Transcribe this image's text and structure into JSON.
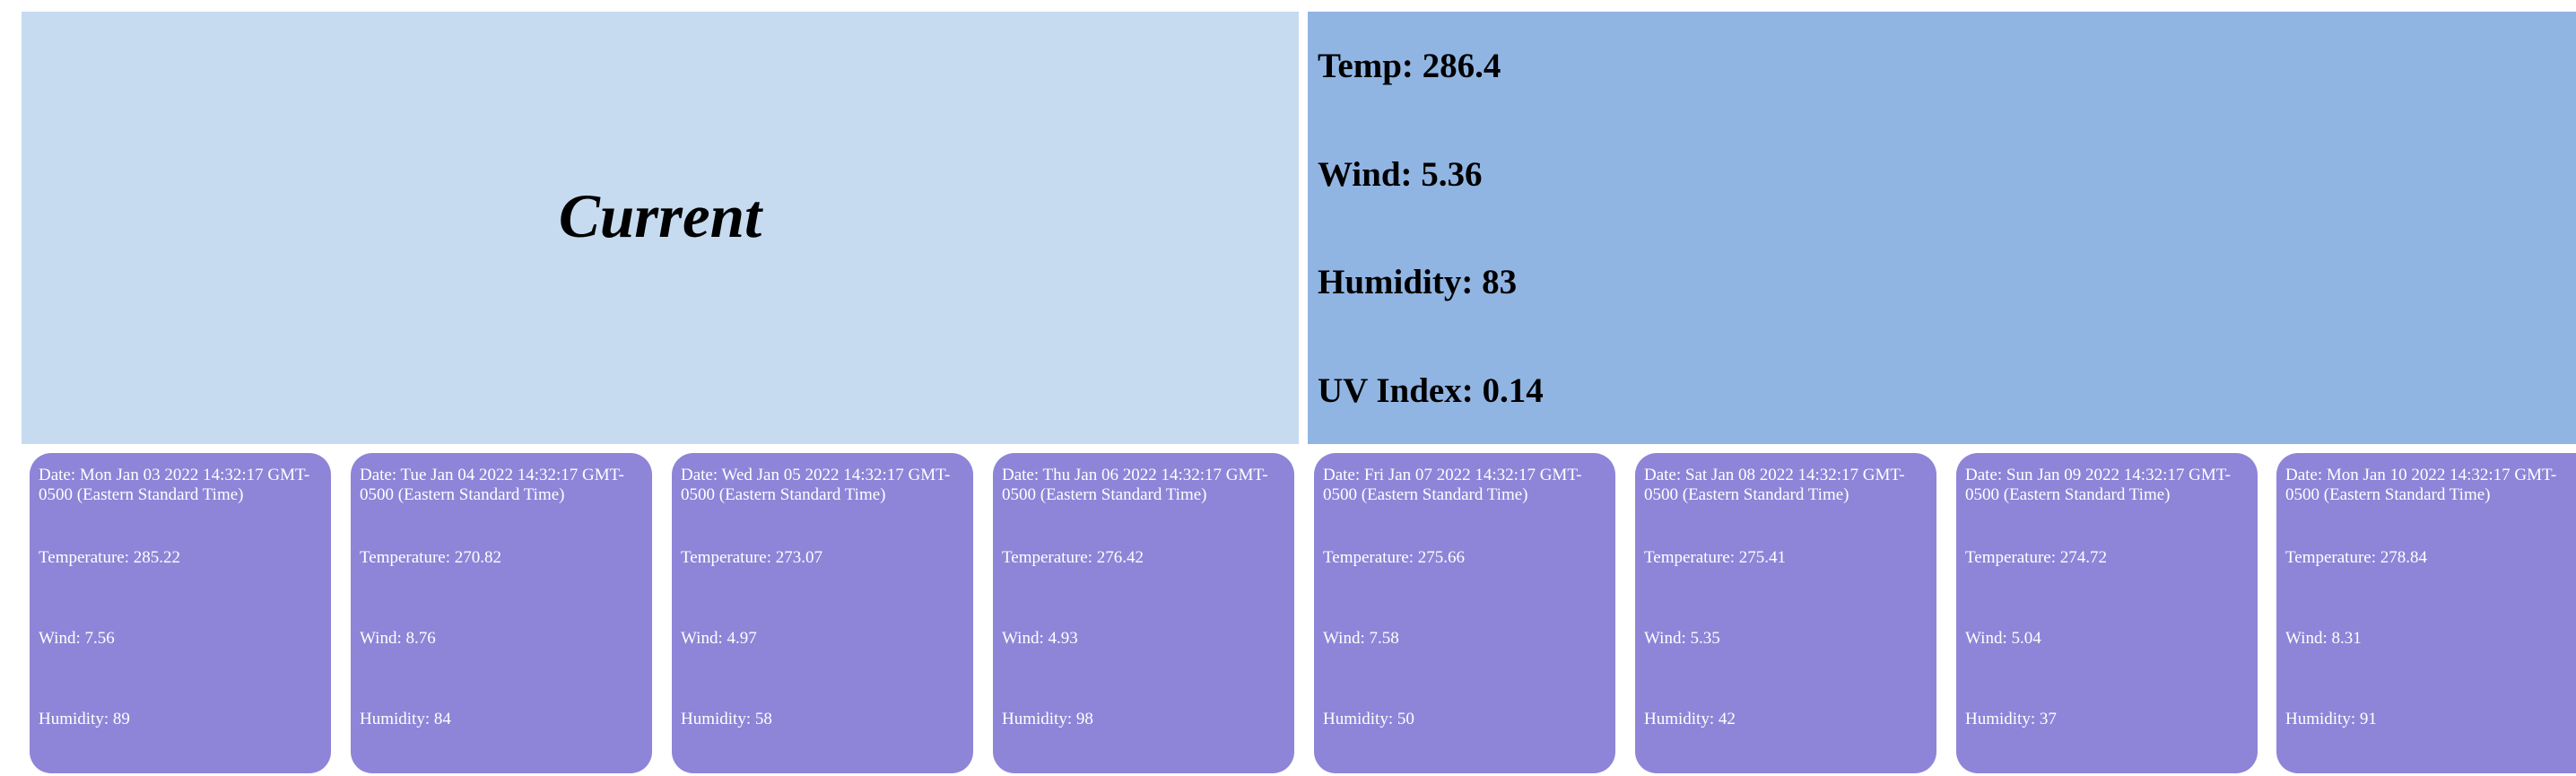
{
  "current": {
    "title": "Current"
  },
  "stats": {
    "temp": "Temp: 286.4",
    "wind": "Wind: 5.36",
    "humidity": "Humidity: 83",
    "uv_index": "UV Index: 0.14"
  },
  "forecast": [
    {
      "date": "Date: Mon Jan 03 2022 14:32:17 GMT-0500 (Eastern Standard Time)",
      "temperature": "Temperature: 285.22",
      "wind": "Wind: 7.56",
      "humidity": "Humidity: 89"
    },
    {
      "date": "Date: Tue Jan 04 2022 14:32:17 GMT-0500 (Eastern Standard Time)",
      "temperature": "Temperature: 270.82",
      "wind": "Wind: 8.76",
      "humidity": "Humidity: 84"
    },
    {
      "date": "Date: Wed Jan 05 2022 14:32:17 GMT-0500 (Eastern Standard Time)",
      "temperature": "Temperature: 273.07",
      "wind": "Wind: 4.97",
      "humidity": "Humidity: 58"
    },
    {
      "date": "Date: Thu Jan 06 2022 14:32:17 GMT-0500 (Eastern Standard Time)",
      "temperature": "Temperature: 276.42",
      "wind": "Wind: 4.93",
      "humidity": "Humidity: 98"
    },
    {
      "date": "Date: Fri Jan 07 2022 14:32:17 GMT-0500 (Eastern Standard Time)",
      "temperature": "Temperature: 275.66",
      "wind": "Wind: 7.58",
      "humidity": "Humidity: 50"
    },
    {
      "date": "Date: Sat Jan 08 2022 14:32:17 GMT-0500 (Eastern Standard Time)",
      "temperature": "Temperature: 275.41",
      "wind": "Wind: 5.35",
      "humidity": "Humidity: 42"
    },
    {
      "date": "Date: Sun Jan 09 2022 14:32:17 GMT-0500 (Eastern Standard Time)",
      "temperature": "Temperature: 274.72",
      "wind": "Wind: 5.04",
      "humidity": "Humidity: 37"
    },
    {
      "date": "Date: Mon Jan 10 2022 14:32:17 GMT-0500 (Eastern Standard Time)",
      "temperature": "Temperature: 278.84",
      "wind": "Wind: 8.31",
      "humidity": "Humidity: 91"
    }
  ]
}
